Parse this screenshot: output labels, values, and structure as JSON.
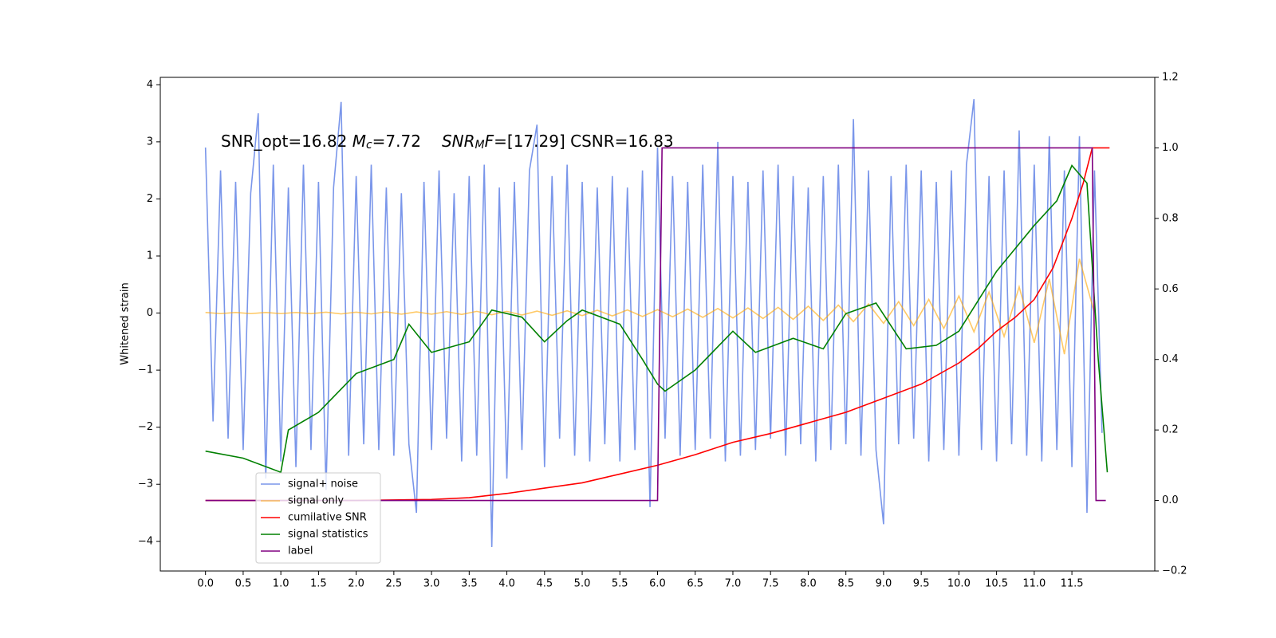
{
  "chart_data": {
    "type": "line",
    "ylabel": "Whitened strain",
    "annotation_parts": [
      "SNR_opt=16.82 ",
      "M",
      "c",
      "=7.72",
      "SNR",
      "M",
      "F",
      "=[17.29] CSNR=16.83"
    ],
    "xlim": [
      -0.6,
      12.6
    ],
    "ylim": [
      -4.52,
      4.13
    ],
    "y2lim": [
      -0.2,
      1.2
    ],
    "xticks": [
      {
        "value": 0,
        "label": "0.0"
      },
      0.5,
      {
        "value": 1,
        "label": "1.0"
      },
      1.5,
      {
        "value": 2,
        "label": "2.0"
      },
      2.5,
      {
        "value": 3,
        "label": "3.0"
      },
      3.5,
      {
        "value": 4,
        "label": "4.0"
      },
      4.5,
      {
        "value": 5,
        "label": "5.0"
      },
      5.5,
      {
        "value": 6,
        "label": "6.0"
      },
      6.5,
      {
        "value": 7,
        "label": "7.0"
      },
      7.5,
      {
        "value": 8,
        "label": "8.0"
      },
      8.5,
      {
        "value": 9,
        "label": "9.0"
      },
      9.5,
      {
        "value": 10,
        "label": "10.0"
      },
      10.5,
      {
        "value": 11,
        "label": "11.0"
      },
      11.5
    ],
    "yticks": [
      {
        "value": -4,
        "label": "−4"
      },
      {
        "value": -3,
        "label": "−3"
      },
      {
        "value": -2,
        "label": "−2"
      },
      {
        "value": -1,
        "label": "−1"
      },
      0,
      1,
      2,
      3,
      4
    ],
    "y2ticks": [
      {
        "value": -0.2,
        "label": "−0.2"
      },
      {
        "value": 0,
        "label": "0.0"
      },
      0.2,
      0.4,
      0.6,
      0.8,
      {
        "value": 1,
        "label": "1.0"
      },
      1.2
    ],
    "legend_loc": "lower left",
    "series": [
      {
        "name": "signal+ noise",
        "color": "#4169e1",
        "alpha": 0.7,
        "x": [
          0.0,
          0.1,
          0.2,
          0.3,
          0.4,
          0.5,
          0.6,
          0.7,
          0.8,
          0.9,
          1.0,
          1.1,
          1.2,
          1.3,
          1.4,
          1.5,
          1.6,
          1.7,
          1.8,
          1.9,
          2.0,
          2.1,
          2.2,
          2.3,
          2.4,
          2.5,
          2.6,
          2.7,
          2.8,
          2.9,
          3.0,
          3.1,
          3.2,
          3.3,
          3.4,
          3.5,
          3.6,
          3.7,
          3.8,
          3.9,
          4.0,
          4.1,
          4.2,
          4.3,
          4.4,
          4.5,
          4.6,
          4.7,
          4.8,
          4.9,
          5.0,
          5.1,
          5.2,
          5.3,
          5.4,
          5.5,
          5.6,
          5.7,
          5.8,
          5.9,
          6.0,
          6.1,
          6.2,
          6.3,
          6.4,
          6.5,
          6.6,
          6.7,
          6.8,
          6.9,
          7.0,
          7.1,
          7.2,
          7.3,
          7.4,
          7.5,
          7.6,
          7.7,
          7.8,
          7.9,
          8.0,
          8.1,
          8.2,
          8.3,
          8.4,
          8.5,
          8.6,
          8.7,
          8.8,
          8.9,
          9.0,
          9.1,
          9.2,
          9.3,
          9.4,
          9.5,
          9.6,
          9.7,
          9.8,
          9.9,
          10.0,
          10.1,
          10.2,
          10.3,
          10.4,
          10.5,
          10.6,
          10.7,
          10.8,
          10.9,
          11.0,
          11.1,
          11.2,
          11.3,
          11.4,
          11.5,
          11.6,
          11.7,
          11.8,
          11.9
        ],
        "values": [
          2.9,
          -1.9,
          2.5,
          -2.2,
          2.3,
          -2.4,
          2.1,
          3.5,
          -2.9,
          2.6,
          -2.6,
          2.2,
          -2.7,
          2.6,
          -2.4,
          2.3,
          -3.1,
          2.2,
          3.7,
          -2.5,
          2.4,
          -2.3,
          2.6,
          -2.4,
          2.2,
          -2.5,
          2.1,
          -2.3,
          -3.5,
          2.3,
          -2.4,
          2.5,
          -2.2,
          2.1,
          -2.6,
          2.4,
          -2.5,
          2.6,
          -4.1,
          2.2,
          -2.9,
          2.3,
          -2.4,
          2.5,
          3.3,
          -2.7,
          2.4,
          -2.2,
          2.6,
          -2.5,
          2.3,
          -2.6,
          2.2,
          -2.3,
          2.4,
          -2.6,
          2.2,
          -2.4,
          2.5,
          -3.4,
          2.9,
          -2.2,
          2.4,
          -2.5,
          2.3,
          -2.4,
          2.6,
          -2.2,
          3.0,
          -2.6,
          2.4,
          -2.5,
          2.3,
          -2.4,
          2.5,
          -2.2,
          2.6,
          -2.5,
          2.4,
          -2.3,
          2.2,
          -2.6,
          2.4,
          -2.4,
          2.6,
          -2.3,
          3.4,
          -2.5,
          2.5,
          -2.4,
          -3.7,
          2.4,
          -2.3,
          2.6,
          -2.2,
          2.5,
          -2.6,
          2.3,
          -2.4,
          2.5,
          -2.5,
          2.6,
          3.75,
          -2.4,
          2.4,
          -2.6,
          2.5,
          -2.3,
          3.2,
          -2.5,
          2.6,
          -2.6,
          3.1,
          -2.4,
          2.5,
          -2.7,
          3.1,
          -3.5,
          2.5,
          -2.1
        ]
      },
      {
        "name": "signal only",
        "color": "#ffa500",
        "alpha": 0.6,
        "x": [
          0.0,
          0.2,
          0.4,
          0.6,
          0.8,
          1.0,
          1.2,
          1.4,
          1.6,
          1.8,
          2.0,
          2.2,
          2.4,
          2.6,
          2.8,
          3.0,
          3.2,
          3.4,
          3.6,
          3.8,
          4.0,
          4.2,
          4.4,
          4.6,
          4.8,
          5.0,
          5.2,
          5.4,
          5.6,
          5.8,
          6.0,
          6.2,
          6.4,
          6.6,
          6.8,
          7.0,
          7.2,
          7.4,
          7.6,
          7.8,
          8.0,
          8.2,
          8.4,
          8.6,
          8.8,
          9.0,
          9.2,
          9.4,
          9.6,
          9.8,
          10.0,
          10.2,
          10.4,
          10.6,
          10.8,
          11.0,
          11.2,
          11.4,
          11.6,
          11.8
        ],
        "values": [
          0.01,
          -0.01,
          0.01,
          -0.01,
          0.01,
          -0.01,
          0.01,
          -0.01,
          0.015,
          -0.015,
          0.015,
          -0.015,
          0.02,
          -0.02,
          0.02,
          -0.02,
          0.025,
          -0.025,
          0.03,
          -0.03,
          0.03,
          -0.035,
          0.035,
          -0.04,
          0.04,
          -0.045,
          0.05,
          -0.05,
          0.055,
          -0.06,
          0.06,
          -0.065,
          0.07,
          -0.075,
          0.08,
          -0.085,
          0.09,
          -0.095,
          0.1,
          -0.11,
          0.12,
          -0.13,
          0.14,
          -0.15,
          0.16,
          -0.18,
          0.2,
          -0.22,
          0.24,
          -0.27,
          0.3,
          -0.33,
          0.37,
          -0.41,
          0.46,
          -0.52,
          0.6,
          -0.72,
          0.95,
          0.0
        ]
      },
      {
        "name": "cumilative SNR",
        "color": "#ff0000",
        "axis": "y2",
        "x": [
          0,
          1,
          2,
          3,
          3.5,
          4,
          4.5,
          5,
          5.5,
          6,
          6.5,
          7,
          7.5,
          8,
          8.5,
          9,
          9.5,
          10,
          10.25,
          10.5,
          10.75,
          11,
          11.25,
          11.5,
          11.65,
          11.77,
          12.0
        ],
        "values": [
          0,
          0,
          0,
          0.003,
          0.008,
          0.02,
          0.035,
          0.05,
          0.075,
          0.1,
          0.13,
          0.165,
          0.19,
          0.22,
          0.25,
          0.29,
          0.33,
          0.39,
          0.43,
          0.48,
          0.52,
          0.57,
          0.66,
          0.8,
          0.9,
          1.0,
          1.0
        ]
      },
      {
        "name": "signal statistics",
        "color": "#008000",
        "axis": "y2",
        "x": [
          0,
          0.5,
          1.0,
          1.1,
          1.5,
          2.0,
          2.5,
          2.7,
          3.0,
          3.5,
          3.8,
          4.2,
          4.5,
          4.8,
          5.0,
          5.5,
          5.8,
          6.0,
          6.1,
          6.5,
          7.0,
          7.3,
          7.8,
          8.2,
          8.5,
          8.9,
          9.3,
          9.7,
          10.0,
          10.5,
          11.0,
          11.3,
          11.5,
          11.7,
          11.85,
          11.97
        ],
        "values": [
          0.14,
          0.12,
          0.08,
          0.2,
          0.25,
          0.36,
          0.4,
          0.5,
          0.42,
          0.45,
          0.54,
          0.52,
          0.45,
          0.51,
          0.54,
          0.5,
          0.4,
          0.33,
          0.31,
          0.37,
          0.48,
          0.42,
          0.46,
          0.43,
          0.53,
          0.56,
          0.43,
          0.44,
          0.48,
          0.65,
          0.78,
          0.85,
          0.95,
          0.9,
          0.4,
          0.08
        ]
      },
      {
        "name": "label",
        "color": "#800080",
        "axis": "y2",
        "x": [
          0,
          6.0,
          6.06,
          11.77,
          11.82,
          11.95
        ],
        "values": [
          0,
          0,
          1,
          1,
          0,
          0
        ]
      }
    ]
  }
}
